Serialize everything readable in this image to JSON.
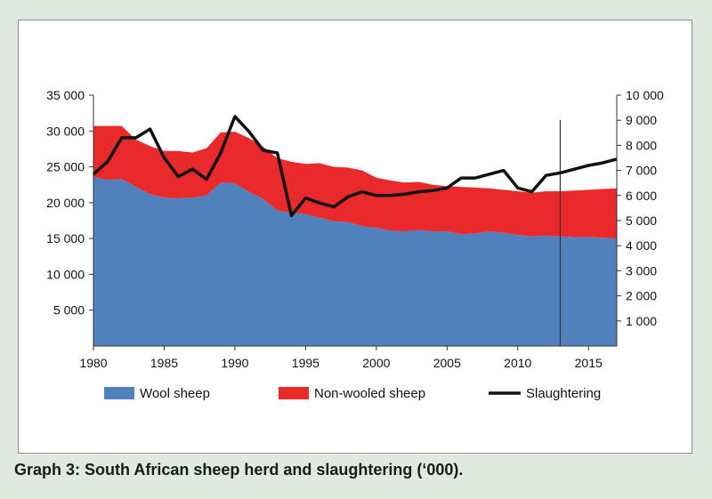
{
  "caption": "Graph 3: South African sheep herd and slaughtering (‘000).",
  "chart_data": {
    "type": "area",
    "title": "",
    "xlabel": "",
    "ylabel": "",
    "x": [
      1980,
      1981,
      1982,
      1983,
      1984,
      1985,
      1986,
      1987,
      1988,
      1989,
      1990,
      1991,
      1992,
      1993,
      1994,
      1995,
      1996,
      1997,
      1998,
      1999,
      2000,
      2001,
      2002,
      2003,
      2004,
      2005,
      2006,
      2007,
      2008,
      2009,
      2010,
      2011,
      2012,
      2013,
      2014,
      2015,
      2016,
      2017
    ],
    "xlim": [
      1980,
      2017
    ],
    "x_ticks": [
      1980,
      1985,
      1990,
      1995,
      2000,
      2005,
      2010,
      2015
    ],
    "y_left": {
      "lim": [
        0,
        35000
      ],
      "ticks": [
        5000,
        10000,
        15000,
        20000,
        25000,
        30000,
        35000
      ],
      "tick_labels": [
        "5 000",
        "10 000",
        "15 000",
        "20 000",
        "25 000",
        "30 000",
        "35 000"
      ]
    },
    "y_right": {
      "lim": [
        0,
        10000
      ],
      "ticks": [
        1000,
        2000,
        3000,
        4000,
        5000,
        6000,
        7000,
        8000,
        9000,
        10000
      ],
      "tick_labels": [
        "1 000",
        "2 000",
        "3 000",
        "4 000",
        "5 000",
        "6 000",
        "7 000",
        "8 000",
        "9 000",
        "10 000"
      ]
    },
    "series": [
      {
        "name": "Wool sheep",
        "type": "area",
        "axis": "left",
        "stack": "herd",
        "color": "#5081bd",
        "values": [
          23600,
          23200,
          23300,
          22200,
          21200,
          20700,
          20600,
          20700,
          21000,
          22800,
          22700,
          21500,
          20500,
          18900,
          18600,
          18400,
          17900,
          17400,
          17300,
          16700,
          16500,
          16100,
          16000,
          16200,
          16000,
          16000,
          15600,
          15700,
          16000,
          15800,
          15500,
          15300,
          15400,
          15300,
          15200,
          15200,
          15100,
          15000
        ]
      },
      {
        "name": "Non-wooled sheep",
        "type": "area",
        "axis": "left",
        "stack": "herd",
        "color": "#ea2a2a",
        "values": [
          7100,
          7500,
          7400,
          6600,
          6700,
          6500,
          6600,
          6300,
          6600,
          7000,
          7200,
          7500,
          7300,
          7300,
          7100,
          7000,
          7600,
          7600,
          7600,
          7800,
          7000,
          7000,
          6800,
          6700,
          6500,
          6300,
          6600,
          6400,
          6000,
          6000,
          6100,
          6100,
          6200,
          6300,
          6500,
          6600,
          6800,
          7000
        ]
      },
      {
        "name": "Slaughtering",
        "type": "line",
        "axis": "right",
        "color": "#111111",
        "values": [
          6850,
          7350,
          8300,
          8300,
          8650,
          7500,
          6750,
          7050,
          6650,
          7700,
          9150,
          8550,
          7800,
          7700,
          5200,
          5900,
          5700,
          5550,
          5950,
          6150,
          6000,
          6000,
          6050,
          6150,
          6200,
          6300,
          6700,
          6700,
          6850,
          7000,
          6300,
          6150,
          6800,
          6900,
          7050,
          7200,
          7300,
          7450
        ]
      }
    ],
    "annotations": [
      {
        "type": "vertical-line",
        "x": 2013
      }
    ],
    "legend_position": "bottom",
    "grid": false
  }
}
